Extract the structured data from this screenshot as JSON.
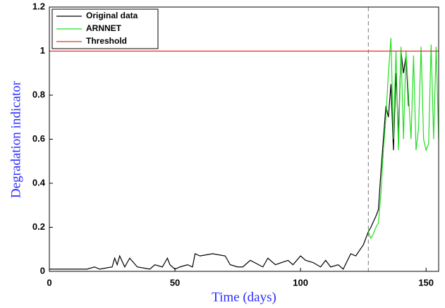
{
  "chart_data": {
    "type": "line",
    "xlabel": "Time (days)",
    "ylabel": "Degradation indicator",
    "xlim": [
      0,
      155
    ],
    "ylim": [
      0,
      1.2
    ],
    "xticks": [
      0,
      50,
      100,
      150
    ],
    "yticks": [
      0,
      0.2,
      0.4,
      0.6,
      0.8,
      1,
      1.2
    ],
    "vline": 127,
    "legend": "upper left",
    "series": [
      {
        "name": "Original data",
        "color": "#000000",
        "x": [
          0,
          5,
          10,
          15,
          18,
          20,
          25,
          26,
          27,
          28,
          30,
          32,
          35,
          40,
          42,
          45,
          47,
          48,
          50,
          52,
          55,
          57,
          58,
          60,
          65,
          70,
          72,
          75,
          77,
          80,
          85,
          87,
          90,
          95,
          97,
          100,
          102,
          105,
          108,
          110,
          112,
          115,
          117,
          120,
          122,
          125,
          127,
          128,
          130,
          131,
          132,
          133,
          134,
          135,
          136,
          137,
          138,
          139,
          140,
          141,
          142,
          143
        ],
        "values": [
          0.01,
          0.01,
          0.01,
          0.01,
          0.02,
          0.01,
          0.02,
          0.06,
          0.03,
          0.07,
          0.02,
          0.06,
          0.02,
          0.01,
          0.03,
          0.02,
          0.06,
          0.03,
          0.01,
          0.02,
          0.03,
          0.02,
          0.08,
          0.07,
          0.08,
          0.07,
          0.03,
          0.02,
          0.02,
          0.05,
          0.02,
          0.06,
          0.03,
          0.05,
          0.03,
          0.07,
          0.05,
          0.04,
          0.02,
          0.05,
          0.02,
          0.03,
          0.01,
          0.08,
          0.07,
          0.12,
          0.18,
          0.2,
          0.25,
          0.28,
          0.45,
          0.6,
          0.75,
          0.7,
          0.85,
          0.55,
          0.9,
          0.62,
          1.0,
          0.9,
          0.98,
          0.75
        ]
      },
      {
        "name": "ARNNET",
        "color": "#22dd22",
        "x": [
          127,
          128,
          129,
          130,
          131,
          132,
          133,
          134,
          135,
          136,
          137,
          138,
          139,
          140,
          141,
          142,
          143,
          144,
          145,
          146,
          147,
          148,
          149,
          150,
          151,
          152,
          153,
          154,
          155
        ],
        "values": [
          0.18,
          0.15,
          0.17,
          0.2,
          0.22,
          0.35,
          0.55,
          0.7,
          0.9,
          1.06,
          0.6,
          1.0,
          0.55,
          1.02,
          0.6,
          1.0,
          0.8,
          0.6,
          0.98,
          0.55,
          0.65,
          1.02,
          0.6,
          0.55,
          0.58,
          1.03,
          0.6,
          1.02,
          0.6
        ]
      },
      {
        "name": "Threshold",
        "color": "#e03030",
        "x": [
          0,
          155
        ],
        "values": [
          1,
          1
        ]
      }
    ]
  }
}
